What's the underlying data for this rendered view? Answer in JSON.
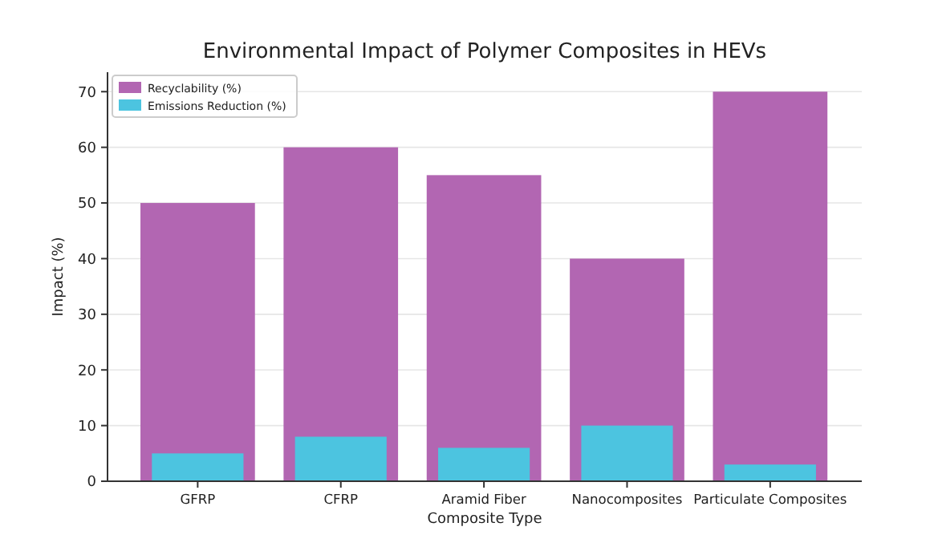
{
  "chart_data": {
    "type": "bar",
    "title": "Environmental Impact of Polymer Composites in HEVs",
    "xlabel": "Composite Type",
    "ylabel": "Impact (%)",
    "categories": [
      "GFRP",
      "CFRP",
      "Aramid Fiber",
      "Nanocomposites",
      "Particulate Composites"
    ],
    "series": [
      {
        "name": "Recyclability (%)",
        "color": "#b266b2",
        "values": [
          50,
          60,
          55,
          40,
          70
        ]
      },
      {
        "name": "Emissions Reduction (%)",
        "color": "#4cc4e0",
        "values": [
          5,
          8,
          6,
          10,
          3
        ]
      }
    ],
    "ylim": [
      0,
      73.5
    ],
    "yticks": [
      0,
      10,
      20,
      30,
      40,
      50,
      60,
      70
    ],
    "grid": "y",
    "legend": "top left"
  }
}
